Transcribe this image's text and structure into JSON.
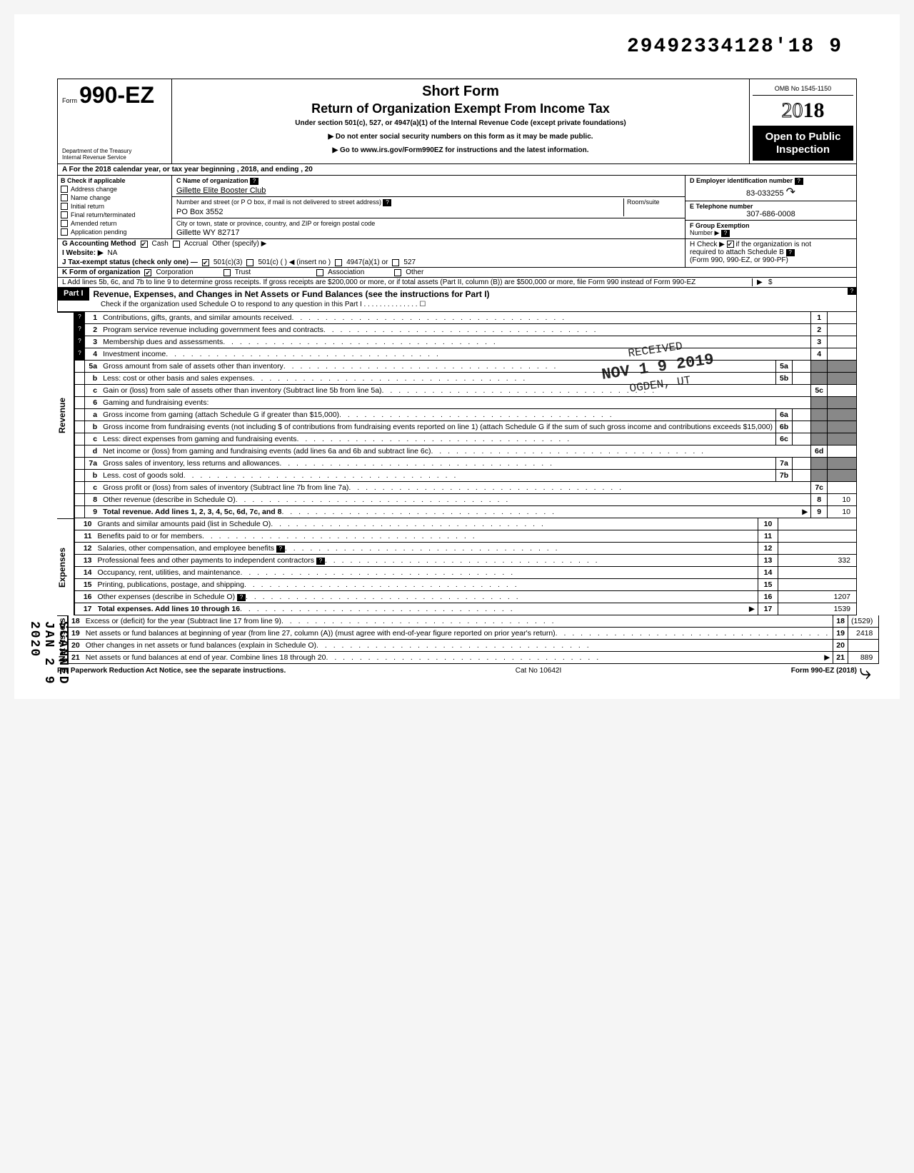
{
  "meta": {
    "top_number": "29492334128'18",
    "top_suffix": "9",
    "form_prefix": "Form",
    "form_number": "990-EZ",
    "dept1": "Department of the Treasury",
    "dept2": "Internal Revenue Service",
    "title1": "Short Form",
    "title2": "Return of Organization Exempt From Income Tax",
    "subtitle": "Under section 501(c), 527, or 4947(a)(1) of the Internal Revenue Code (except private foundations)",
    "note1": "▶ Do not enter social security numbers on this form as it may be made public.",
    "note2": "▶ Go to www.irs.gov/Form990EZ for instructions and the latest information.",
    "omb": "OMB No 1545-1150",
    "year_outline": "20",
    "year_bold": "18",
    "open_public": "Open to Public Inspection",
    "scanned": "SCANNED JAN 2 9 2020"
  },
  "row_a": "A  For the 2018 calendar year, or tax year beginning                                              , 2018, and ending                                   , 20",
  "section_b": {
    "header": "B  Check if applicable",
    "items": [
      "Address change",
      "Name change",
      "Initial return",
      "Final return/terminated",
      "Amended return",
      "Application pending"
    ]
  },
  "section_c": {
    "label": "C  Name of organization",
    "name": "Gillette Elite Booster Club",
    "addr_label": "Number and street (or P O  box, if mail is not delivered to street address)",
    "room_label": "Room/suite",
    "addr": "PO Box 3552",
    "city_label": "City or town, state or province, country, and ZIP or foreign postal code",
    "city": "Gillette WY 82717"
  },
  "section_d": {
    "label": "D Employer identification number",
    "value": "83-033255"
  },
  "section_e": {
    "label": "E Telephone number",
    "value": "307-686-0008"
  },
  "section_f": {
    "label": "F  Group Exemption",
    "label2": "Number  ▶"
  },
  "row_g": {
    "label": "G  Accounting Method",
    "opts": [
      "Cash",
      "Accrual"
    ],
    "other": "Other (specify) ▶"
  },
  "row_h": {
    "text": "H  Check  ▶",
    "text2": "if the organization is not",
    "text3": "required to attach Schedule B",
    "text4": "(Form 990, 990-EZ, or 990-PF)"
  },
  "row_i": {
    "label": "I   Website: ▶",
    "value": "NA"
  },
  "row_j": {
    "label": "J  Tax-exempt status (check only one) —",
    "opts": [
      "501(c)(3)",
      "501(c) (        ) ◀ (insert no )",
      "4947(a)(1) or",
      "527"
    ]
  },
  "row_k": {
    "label": "K  Form of organization",
    "opts": [
      "Corporation",
      "Trust",
      "Association",
      "Other"
    ]
  },
  "row_l": "L  Add lines 5b, 6c, and 7b to line 9 to determine gross receipts. If gross receipts are $200,000 or more, or if total assets (Part II, column (B)) are $500,000 or more, file Form 990 instead of Form 990-EZ",
  "part1": {
    "label": "Part I",
    "title": "Revenue, Expenses, and Changes in Net Assets or Fund Balances (see the instructions for Part I)",
    "sub": "Check if the organization used Schedule O to respond to any question in this Part I  .  .  .  .  .  .  .  .  .  .  .  .  .  .  ☐"
  },
  "stamp": {
    "l1": "RECEIVED",
    "l2": "NOV 1 9 2019",
    "l3": "OGDEN, UT"
  },
  "revenue_label": "Revenue",
  "expenses_label": "Expenses",
  "netassets_label": "Net Assets",
  "lines": [
    {
      "n": "1",
      "d": "Contributions, gifts, grants, and similar amounts received",
      "rn": "1",
      "rv": "",
      "help": true
    },
    {
      "n": "2",
      "d": "Program service revenue including government fees and contracts",
      "rn": "2",
      "rv": "",
      "help": true
    },
    {
      "n": "3",
      "d": "Membership dues and assessments",
      "rn": "3",
      "rv": "",
      "help": true
    },
    {
      "n": "4",
      "d": "Investment income",
      "rn": "4",
      "rv": "",
      "help": true
    },
    {
      "n": "5a",
      "d": "Gross amount from sale of assets other than inventory",
      "in": "5a",
      "iv": "",
      "shade": true
    },
    {
      "n": "b",
      "d": "Less: cost or other basis and sales expenses",
      "in": "5b",
      "iv": "",
      "shade": true
    },
    {
      "n": "c",
      "d": "Gain or (loss) from sale of assets other than inventory (Subtract line 5b from line 5a)",
      "rn": "5c",
      "rv": ""
    },
    {
      "n": "6",
      "d": "Gaming and fundraising events:",
      "shade": true,
      "nodots": true
    },
    {
      "n": "a",
      "d": "Gross income from gaming (attach Schedule G if greater than $15,000)",
      "in": "6a",
      "iv": "",
      "shade": true
    },
    {
      "n": "b",
      "d": "Gross income from fundraising events (not including  $                    of contributions from fundraising events reported on line 1) (attach Schedule G if the sum of such gross income and contributions exceeds $15,000)",
      "in": "6b",
      "iv": "",
      "shade": true,
      "nodots": true
    },
    {
      "n": "c",
      "d": "Less: direct expenses from gaming and fundraising events",
      "in": "6c",
      "iv": "",
      "shade": true
    },
    {
      "n": "d",
      "d": "Net income or (loss) from gaming and fundraising events (add lines 6a and 6b and subtract line 6c)",
      "rn": "6d",
      "rv": ""
    },
    {
      "n": "7a",
      "d": "Gross sales of inventory, less returns and allowances",
      "in": "7a",
      "iv": "",
      "shade": true
    },
    {
      "n": "b",
      "d": "Less. cost of goods sold",
      "in": "7b",
      "iv": "",
      "shade": true
    },
    {
      "n": "c",
      "d": "Gross profit or (loss) from sales of inventory (Subtract line 7b from line 7a)",
      "rn": "7c",
      "rv": ""
    },
    {
      "n": "8",
      "d": "Other revenue (describe in Schedule O)",
      "rn": "8",
      "rv": "10"
    },
    {
      "n": "9",
      "d": "Total revenue. Add lines 1, 2, 3, 4, 5c, 6d, 7c, and 8",
      "rn": "9",
      "rv": "10",
      "bold": true,
      "arrow": true
    }
  ],
  "exp_lines": [
    {
      "n": "10",
      "d": "Grants and similar amounts paid (list in Schedule O)",
      "rn": "10",
      "rv": ""
    },
    {
      "n": "11",
      "d": "Benefits paid to or for members",
      "rn": "11",
      "rv": ""
    },
    {
      "n": "12",
      "d": "Salaries, other compensation, and employee benefits",
      "rn": "12",
      "rv": "",
      "helpd": true
    },
    {
      "n": "13",
      "d": "Professional fees and other payments to independent contractors",
      "rn": "13",
      "rv": "332",
      "helpd": true
    },
    {
      "n": "14",
      "d": "Occupancy, rent, utilities, and maintenance",
      "rn": "14",
      "rv": ""
    },
    {
      "n": "15",
      "d": "Printing, publications, postage, and shipping",
      "rn": "15",
      "rv": ""
    },
    {
      "n": "16",
      "d": "Other expenses (describe in Schedule O)",
      "rn": "16",
      "rv": "1207",
      "helpd": true
    },
    {
      "n": "17",
      "d": "Total expenses. Add lines 10 through 16",
      "rn": "17",
      "rv": "1539",
      "bold": true,
      "arrow": true
    }
  ],
  "na_lines": [
    {
      "n": "18",
      "d": "Excess or (deficit) for the year (Subtract line 17 from line 9)",
      "rn": "18",
      "rv": "(1529)"
    },
    {
      "n": "19",
      "d": "Net assets or fund balances at beginning of year (from line 27, column (A)) (must agree with end-of-year figure reported on prior year's return)",
      "rn": "19",
      "rv": "2418",
      "nodots": false
    },
    {
      "n": "20",
      "d": "Other changes in net assets or fund balances (explain in Schedule O)",
      "rn": "20",
      "rv": ""
    },
    {
      "n": "21",
      "d": "Net assets or fund balances at end of year. Combine lines 18 through 20",
      "rn": "21",
      "rv": "889",
      "arrow": true
    }
  ],
  "footer": {
    "left": "For Paperwork Reduction Act Notice, see the separate instructions.",
    "mid": "Cat No  10642I",
    "right": "Form 990-EZ (2018)"
  }
}
